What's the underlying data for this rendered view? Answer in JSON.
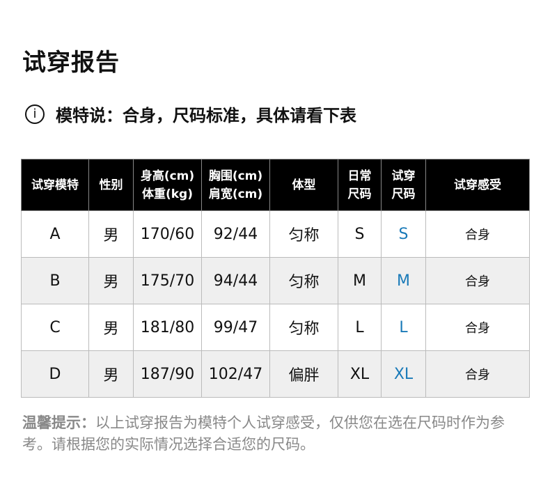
{
  "title": "试穿报告",
  "info": {
    "icon": "info-icon",
    "text": "模特说：合身，尺码标准，具体请看下表"
  },
  "table": {
    "headers": [
      "试穿模特",
      "性别",
      "身高(cm)\n体重(kg)",
      "胸围(cm)\n肩宽(cm)",
      "体型",
      "日常\n尺码",
      "试穿\n尺码",
      "试穿感受"
    ],
    "rows": [
      [
        "A",
        "男",
        "170/60",
        "92/44",
        "匀称",
        "S",
        "S",
        "合身"
      ],
      [
        "B",
        "男",
        "175/70",
        "94/44",
        "匀称",
        "M",
        "M",
        "合身"
      ],
      [
        "C",
        "男",
        "181/80",
        "99/47",
        "匀称",
        "L",
        "L",
        "合身"
      ],
      [
        "D",
        "男",
        "187/90",
        "102/47",
        "偏胖",
        "XL",
        "XL",
        "合身"
      ]
    ],
    "fit_color": "#1a7ab8"
  },
  "note": {
    "label": "温馨提示：",
    "text": "以上试穿报告为模特个人试穿感受，仅供您在选在尺码时作为参考。请根据您的实际情况选择合适您的尺码。"
  }
}
